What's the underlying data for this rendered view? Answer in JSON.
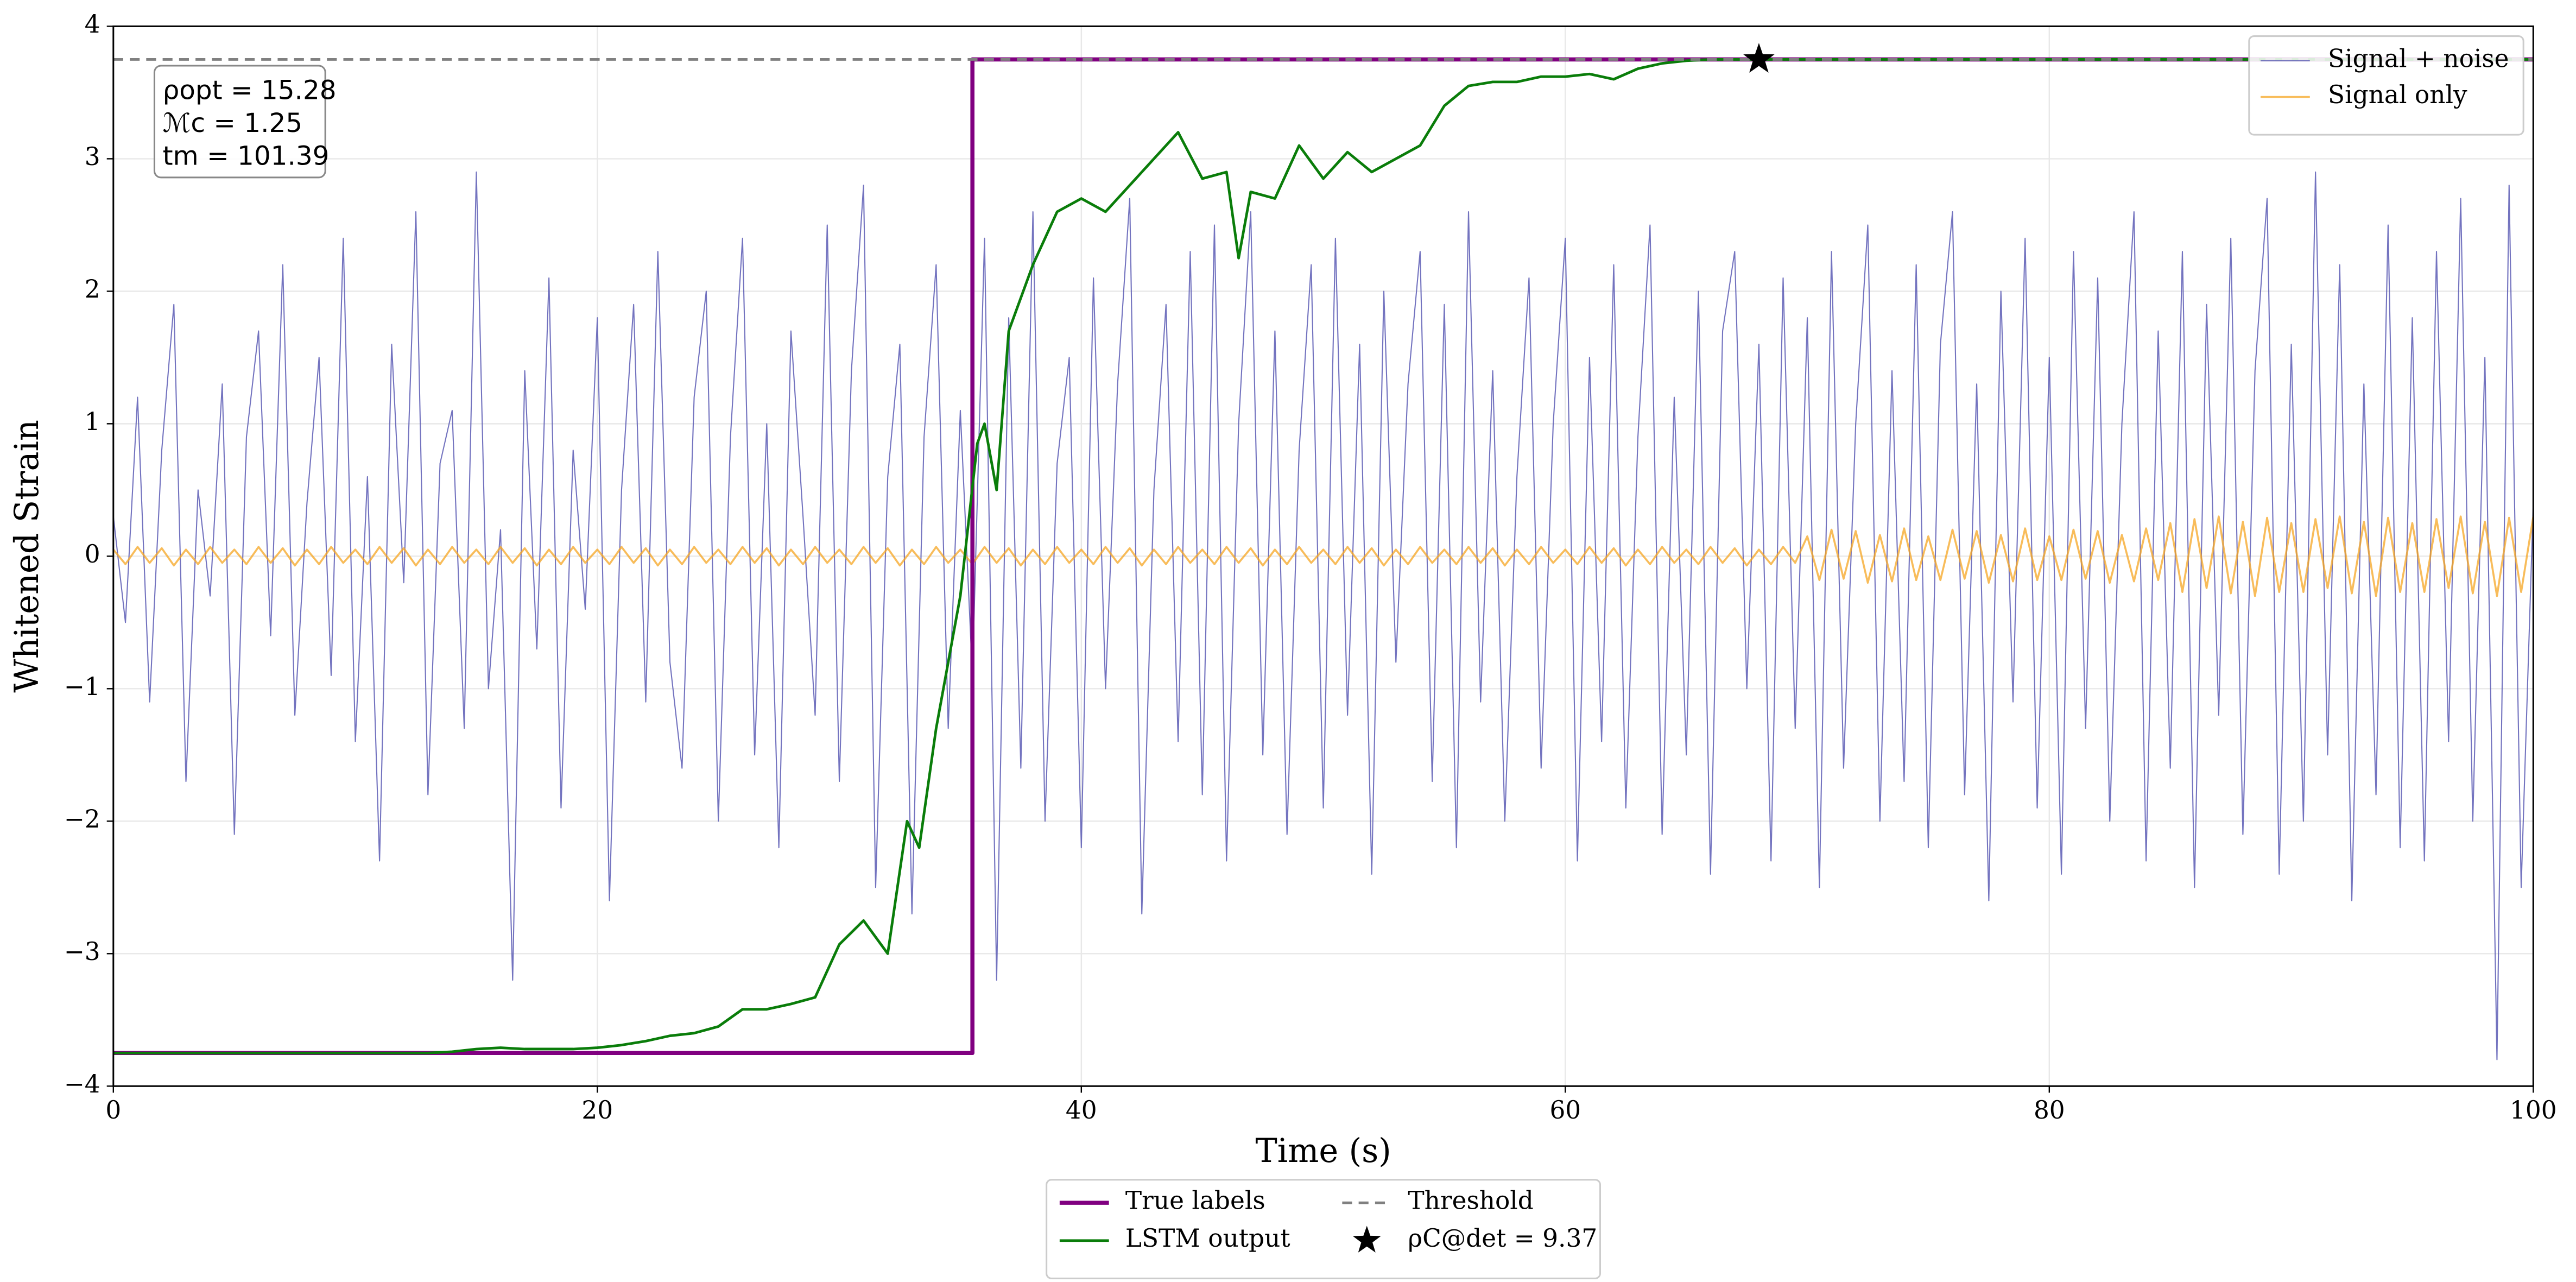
{
  "chart_data": {
    "type": "line",
    "xlabel": "Time (s)",
    "ylabel": "Whitened Strain",
    "xlim": [
      0,
      100
    ],
    "ylim": [
      -4,
      4
    ],
    "xticks": [
      0,
      20,
      40,
      60,
      80,
      100
    ],
    "yticks": [
      {
        "value": -4,
        "label": "−4"
      },
      {
        "value": -3,
        "label": "−3"
      },
      {
        "value": -2,
        "label": "−2"
      },
      {
        "value": -1,
        "label": "−1"
      },
      0,
      1,
      2,
      3,
      4
    ],
    "grid": true,
    "annotation": [
      "ρopt = 15.28",
      "ℳc = 1.25",
      "tm = 101.39"
    ],
    "x": [
      0,
      0.5,
      1,
      1.5,
      2,
      2.5,
      3,
      3.5,
      4,
      4.5,
      5,
      5.5,
      6,
      6.5,
      7,
      7.5,
      8,
      8.5,
      9,
      9.5,
      10,
      10.5,
      11,
      11.5,
      12,
      12.5,
      13,
      13.5,
      14,
      14.5,
      15,
      15.5,
      16,
      16.5,
      17,
      17.5,
      18,
      18.5,
      19,
      19.5,
      20,
      20.5,
      21,
      21.5,
      22,
      22.5,
      23,
      23.5,
      24,
      24.5,
      25,
      25.5,
      26,
      26.5,
      27,
      27.5,
      28,
      28.5,
      29,
      29.5,
      30,
      30.5,
      31,
      31.5,
      32,
      32.5,
      33,
      33.5,
      34,
      34.5,
      35,
      35.5,
      36,
      36.5,
      37,
      37.5,
      38,
      38.5,
      39,
      39.5,
      40,
      40.5,
      41,
      41.5,
      42,
      42.5,
      43,
      43.5,
      44,
      44.5,
      45,
      45.5,
      46,
      46.5,
      47,
      47.5,
      48,
      48.5,
      49,
      49.5,
      50,
      50.5,
      51,
      51.5,
      52,
      52.5,
      53,
      53.5,
      54,
      54.5,
      55,
      55.5,
      56,
      56.5,
      57,
      57.5,
      58,
      58.5,
      59,
      59.5,
      60,
      60.5,
      61,
      61.5,
      62,
      62.5,
      63,
      63.5,
      64,
      64.5,
      65,
      65.5,
      66,
      66.5,
      67,
      67.5,
      68,
      68.5,
      69,
      69.5,
      70,
      70.5,
      71,
      71.5,
      72,
      72.5,
      73,
      73.5,
      74,
      74.5,
      75,
      75.5,
      76,
      76.5,
      77,
      77.5,
      78,
      78.5,
      79,
      79.5,
      80,
      80.5,
      81,
      81.5,
      82,
      82.5,
      83,
      83.5,
      84,
      84.5,
      85,
      85.5,
      86,
      86.5,
      87,
      87.5,
      88,
      88.5,
      89,
      89.5,
      90,
      90.5,
      91,
      91.5,
      92,
      92.5,
      93,
      93.5,
      94,
      94.5,
      95,
      95.5,
      96,
      96.5,
      97,
      97.5,
      98,
      98.5,
      99,
      99.5,
      100
    ],
    "series": [
      {
        "name": "Signal + noise",
        "color": "#5a5ab4",
        "style": "thin",
        "legend": "upper right",
        "values": [
          0.3,
          -0.5,
          1.2,
          -1.1,
          0.8,
          1.9,
          -1.7,
          0.5,
          -0.3,
          1.3,
          -2.1,
          0.9,
          1.7,
          -0.6,
          2.2,
          -1.2,
          0.4,
          1.5,
          -0.9,
          2.4,
          -1.4,
          0.6,
          -2.3,
          1.6,
          -0.2,
          2.6,
          -1.8,
          0.7,
          1.1,
          -1.3,
          2.9,
          -1.0,
          0.2,
          -3.2,
          1.4,
          -0.7,
          2.1,
          -1.9,
          0.8,
          -0.4,
          1.8,
          -2.6,
          0.5,
          1.9,
          -1.1,
          2.3,
          -0.8,
          -1.6,
          1.2,
          2.0,
          -2.0,
          0.9,
          2.4,
          -1.5,
          1.0,
          -2.2,
          1.7,
          0.3,
          -1.2,
          2.5,
          -1.7,
          1.4,
          2.8,
          -2.5,
          0.6,
          1.6,
          -2.7,
          0.9,
          2.2,
          -1.3,
          1.1,
          -0.9,
          2.4,
          -3.2,
          1.8,
          -1.6,
          2.6,
          -2.0,
          0.7,
          1.5,
          -2.2,
          2.1,
          -1.0,
          1.3,
          2.7,
          -2.7,
          0.5,
          1.9,
          -1.4,
          2.3,
          -1.8,
          2.5,
          -2.3,
          1.0,
          2.6,
          -1.5,
          1.7,
          -2.1,
          0.8,
          2.2,
          -1.9,
          2.4,
          -1.2,
          1.6,
          -2.4,
          2.0,
          -0.8,
          1.3,
          2.3,
          -1.7,
          1.9,
          -2.2,
          2.6,
          -1.1,
          1.4,
          -2.0,
          0.6,
          2.1,
          -1.6,
          1.0,
          2.4,
          -2.3,
          1.5,
          -1.4,
          2.2,
          -1.9,
          0.9,
          2.5,
          -2.1,
          1.2,
          -1.5,
          2.0,
          -2.4,
          1.7,
          2.3,
          -1.0,
          1.6,
          -2.3,
          2.1,
          -1.3,
          1.8,
          -2.5,
          2.3,
          -1.6,
          1.0,
          2.5,
          -2.0,
          1.4,
          -1.7,
          2.2,
          -2.2,
          1.6,
          2.6,
          -1.8,
          1.3,
          -2.6,
          2.0,
          -1.1,
          2.4,
          -1.9,
          1.5,
          -2.4,
          2.3,
          -1.3,
          2.1,
          -2.0,
          1.0,
          2.6,
          -2.3,
          1.7,
          -1.6,
          2.3,
          -2.5,
          1.9,
          -1.2,
          2.4,
          -2.1,
          1.4,
          2.7,
          -2.4,
          1.6,
          -2.0,
          2.9,
          -1.5,
          2.2,
          -2.6,
          1.3,
          -1.8,
          2.5,
          -2.2,
          1.8,
          -2.3,
          2.3,
          -1.4,
          2.7,
          -2.0,
          1.5,
          -3.8,
          2.8,
          -2.5,
          0.4
        ]
      },
      {
        "name": "Signal only",
        "color": "#f5a623",
        "style": "signal",
        "legend": "upper right",
        "values": [
          0.05,
          -0.06,
          0.07,
          -0.05,
          0.06,
          -0.07,
          0.05,
          -0.06,
          0.07,
          -0.05,
          0.05,
          -0.06,
          0.07,
          -0.05,
          0.06,
          -0.07,
          0.05,
          -0.06,
          0.07,
          -0.05,
          0.05,
          -0.06,
          0.07,
          -0.05,
          0.06,
          -0.07,
          0.05,
          -0.06,
          0.07,
          -0.05,
          0.05,
          -0.06,
          0.07,
          -0.05,
          0.06,
          -0.07,
          0.05,
          -0.06,
          0.07,
          -0.05,
          0.05,
          -0.06,
          0.07,
          -0.05,
          0.06,
          -0.07,
          0.05,
          -0.06,
          0.07,
          -0.05,
          0.05,
          -0.06,
          0.07,
          -0.05,
          0.06,
          -0.07,
          0.05,
          -0.06,
          0.07,
          -0.05,
          0.05,
          -0.06,
          0.07,
          -0.05,
          0.06,
          -0.07,
          0.05,
          -0.06,
          0.07,
          -0.05,
          0.05,
          -0.06,
          0.07,
          -0.05,
          0.06,
          -0.07,
          0.05,
          -0.06,
          0.07,
          -0.05,
          0.05,
          -0.06,
          0.07,
          -0.05,
          0.06,
          -0.07,
          0.05,
          -0.06,
          0.07,
          -0.05,
          0.05,
          -0.06,
          0.07,
          -0.05,
          0.06,
          -0.07,
          0.05,
          -0.06,
          0.07,
          -0.05,
          0.05,
          -0.06,
          0.07,
          -0.05,
          0.06,
          -0.07,
          0.05,
          -0.06,
          0.07,
          -0.05,
          0.05,
          -0.06,
          0.07,
          -0.05,
          0.06,
          -0.07,
          0.05,
          -0.06,
          0.07,
          -0.05,
          0.05,
          -0.06,
          0.07,
          -0.05,
          0.06,
          -0.07,
          0.05,
          -0.06,
          0.07,
          -0.05,
          0.05,
          -0.06,
          0.07,
          -0.05,
          0.06,
          -0.07,
          0.05,
          -0.06,
          0.07,
          -0.05,
          0.15,
          -0.18,
          0.2,
          -0.17,
          0.19,
          -0.2,
          0.16,
          -0.19,
          0.21,
          -0.18,
          0.15,
          -0.18,
          0.2,
          -0.17,
          0.19,
          -0.2,
          0.16,
          -0.19,
          0.21,
          -0.18,
          0.15,
          -0.18,
          0.2,
          -0.17,
          0.19,
          -0.2,
          0.16,
          -0.19,
          0.21,
          -0.18,
          0.25,
          -0.27,
          0.28,
          -0.24,
          0.3,
          -0.28,
          0.26,
          -0.3,
          0.29,
          -0.27,
          0.25,
          -0.27,
          0.28,
          -0.24,
          0.3,
          -0.28,
          0.26,
          -0.3,
          0.29,
          -0.27,
          0.25,
          -0.27,
          0.28,
          -0.24,
          0.3,
          -0.28,
          0.26,
          -0.3,
          0.29,
          -0.27,
          0.3
        ]
      },
      {
        "name": "True labels",
        "color": "#800080",
        "style": "thick",
        "legend": "lower center",
        "x": [
          0,
          35.5,
          35.5,
          100
        ],
        "values": [
          -3.75,
          -3.75,
          3.75,
          3.75
        ]
      },
      {
        "name": "LSTM output",
        "color": "#0a7d0a",
        "style": "line",
        "legend": "lower center",
        "x": [
          0,
          5,
          10,
          13,
          14,
          15,
          16,
          17,
          18,
          19,
          20,
          21,
          22,
          23,
          24,
          25,
          26,
          27,
          28,
          29,
          30,
          31,
          32,
          32.8,
          33.3,
          34,
          35,
          35.7,
          36,
          36.5,
          37,
          38,
          39,
          40,
          41,
          42,
          43,
          44,
          45,
          46,
          46.5,
          47,
          48,
          49,
          50,
          51,
          52,
          53,
          54,
          55,
          56,
          57,
          58,
          59,
          60,
          61,
          62,
          63,
          64,
          65,
          66,
          70,
          80,
          90,
          100
        ],
        "values": [
          -3.75,
          -3.75,
          -3.75,
          -3.75,
          -3.74,
          -3.72,
          -3.71,
          -3.72,
          -3.72,
          -3.72,
          -3.71,
          -3.69,
          -3.66,
          -3.62,
          -3.6,
          -3.55,
          -3.42,
          -3.42,
          -3.38,
          -3.33,
          -2.93,
          -2.75,
          -3.0,
          -2.0,
          -2.2,
          -1.3,
          -0.3,
          0.85,
          1.0,
          0.5,
          1.7,
          2.2,
          2.6,
          2.7,
          2.6,
          2.8,
          3.0,
          3.2,
          2.85,
          2.9,
          2.25,
          2.75,
          2.7,
          3.1,
          2.85,
          3.05,
          2.9,
          3.0,
          3.1,
          3.4,
          3.55,
          3.58,
          3.58,
          3.62,
          3.62,
          3.64,
          3.6,
          3.68,
          3.72,
          3.74,
          3.75,
          3.75,
          3.75,
          3.75,
          3.75
        ]
      },
      {
        "name": "Threshold",
        "color": "#808080",
        "style": "dashed",
        "legend": "lower center",
        "x": [
          0,
          100
        ],
        "values": [
          3.75,
          3.75
        ]
      },
      {
        "name": "ρC@det = 9.37",
        "color": "#000000",
        "style": "star",
        "legend": "lower center",
        "x": [
          68
        ],
        "values": [
          3.75
        ]
      }
    ]
  }
}
